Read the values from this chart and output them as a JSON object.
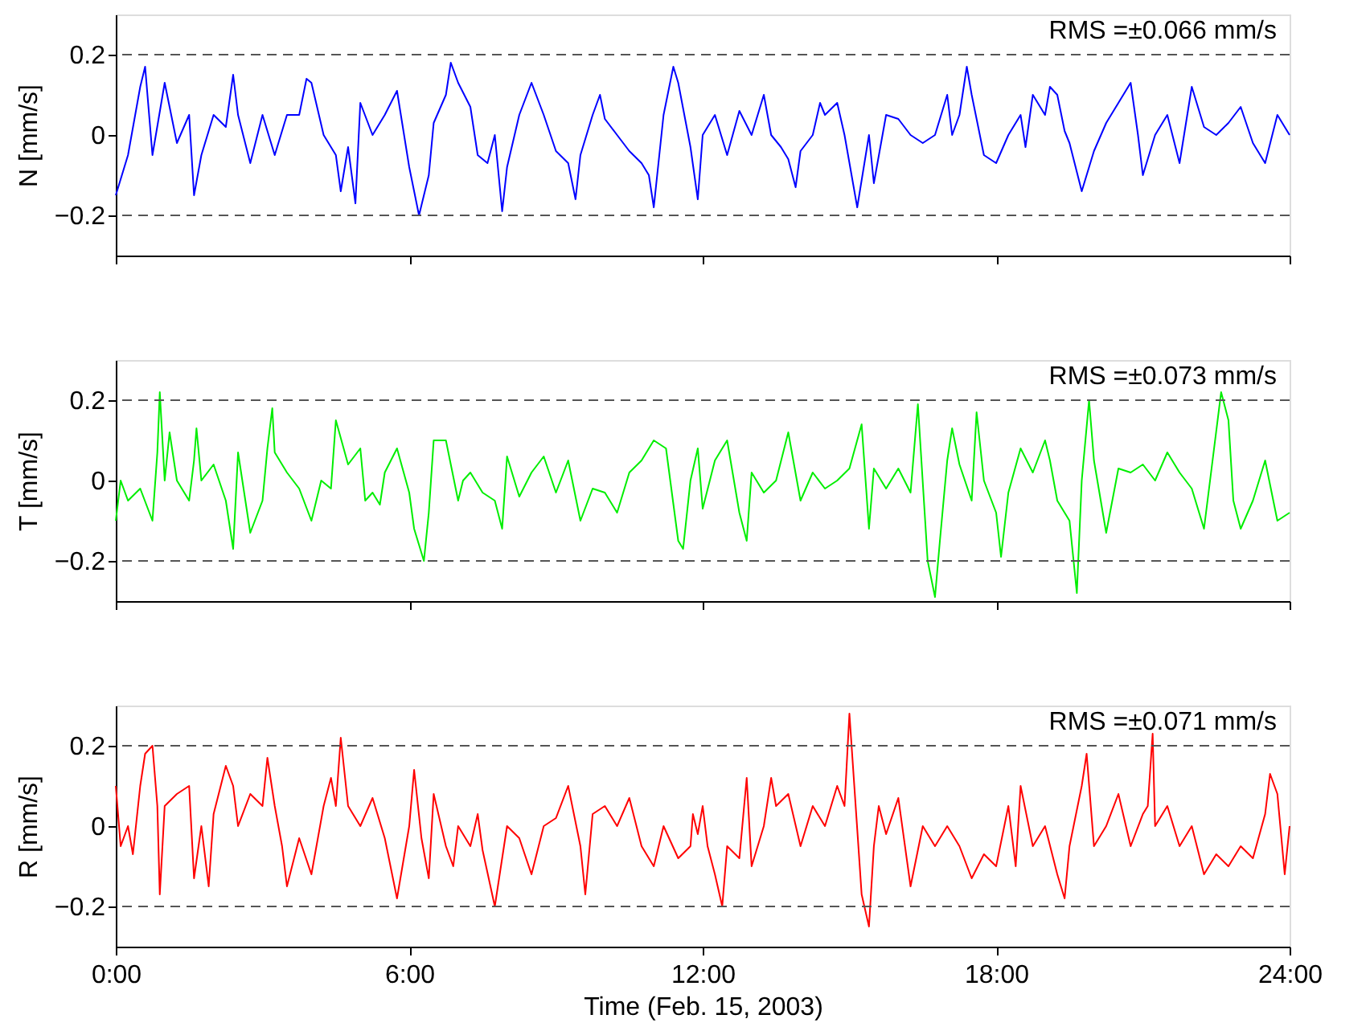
{
  "chart_data": [
    {
      "type": "line",
      "ylabel": "N [mm/s]",
      "annotations": [
        "RMS =±0.066 mm/s"
      ],
      "xlim": [
        0,
        24
      ],
      "xticks": [
        {
          "value": 0,
          "label": null
        },
        {
          "value": 6,
          "label": null
        },
        {
          "value": 12,
          "label": null
        },
        {
          "value": 18,
          "label": null
        },
        {
          "value": 24,
          "label": null
        }
      ],
      "ylim": [
        -0.3,
        0.3
      ],
      "yticks": [
        -0.2,
        0,
        0.2
      ],
      "tick_labels": "y",
      "grid": false,
      "ref_lines": [
        {
          "axis": "y",
          "value": 0.2,
          "color": "#555555",
          "line_style": "dashed"
        },
        {
          "axis": "y",
          "value": -0.2,
          "color": "#555555",
          "line_style": "dashed"
        }
      ],
      "x": [
        0,
        0.25,
        0.5,
        0.6,
        0.75,
        1,
        1.25,
        1.5,
        1.6,
        1.75,
        2,
        2.25,
        2.4,
        2.5,
        2.75,
        3,
        3.25,
        3.5,
        3.75,
        3.9,
        4,
        4.25,
        4.5,
        4.6,
        4.75,
        4.9,
        5,
        5.25,
        5.5,
        5.75,
        6,
        6.1,
        6.2,
        6.4,
        6.5,
        6.75,
        6.85,
        7,
        7.25,
        7.4,
        7.6,
        7.75,
        7.9,
        8,
        8.25,
        8.5,
        8.75,
        9,
        9.25,
        9.4,
        9.5,
        9.75,
        9.9,
        10,
        10.25,
        10.5,
        10.75,
        10.9,
        11,
        11.2,
        11.4,
        11.5,
        11.75,
        11.9,
        12,
        12.25,
        12.5,
        12.75,
        13,
        13.25,
        13.4,
        13.6,
        13.75,
        13.9,
        14,
        14.25,
        14.4,
        14.5,
        14.75,
        14.9,
        15.16,
        15.4,
        15.5,
        15.75,
        16,
        16.25,
        16.5,
        16.75,
        17,
        17.1,
        17.25,
        17.4,
        17.5,
        17.75,
        18,
        18.25,
        18.5,
        18.6,
        18.75,
        19,
        19.1,
        19.25,
        19.4,
        19.5,
        19.75,
        20,
        20.25,
        20.5,
        20.75,
        20.9,
        21,
        21.25,
        21.5,
        21.75,
        22,
        22.1,
        22.25,
        22.5,
        22.75,
        23,
        23.25,
        23.5,
        23.75,
        24
      ],
      "series": [
        {
          "color": "#0000ff",
          "values": [
            -0.15,
            -0.05,
            0.12,
            0.17,
            -0.05,
            0.13,
            -0.02,
            0.05,
            -0.15,
            -0.05,
            0.05,
            0.02,
            0.15,
            0.05,
            -0.07,
            0.05,
            -0.05,
            0.05,
            0.05,
            0.14,
            0.13,
            0,
            -0.05,
            -0.14,
            -0.03,
            -0.17,
            0.08,
            0,
            0.05,
            0.11,
            -0.08,
            -0.14,
            -0.2,
            -0.1,
            0.03,
            0.1,
            0.18,
            0.13,
            0.07,
            -0.05,
            -0.07,
            0,
            -0.19,
            -0.08,
            0.05,
            0.13,
            0.05,
            -0.04,
            -0.07,
            -0.16,
            -0.05,
            0.05,
            0.1,
            0.04,
            0,
            -0.04,
            -0.07,
            -0.1,
            -0.18,
            0.05,
            0.17,
            0.13,
            -0.03,
            -0.16,
            0,
            0.05,
            -0.05,
            0.06,
            0,
            0.1,
            0,
            -0.03,
            -0.06,
            -0.13,
            -0.04,
            0,
            0.08,
            0.05,
            0.08,
            0,
            -0.18,
            0,
            -0.12,
            0.05,
            0.04,
            0,
            -0.02,
            0,
            0.1,
            0,
            0.05,
            0.17,
            0.1,
            -0.05,
            -0.07,
            0,
            0.05,
            -0.03,
            0.1,
            0.05,
            0.12,
            0.1,
            0.01,
            -0.02,
            -0.14,
            -0.04,
            0.03,
            0.08,
            0.13,
            0,
            -0.1,
            0,
            0.05,
            -0.07,
            0.12,
            0.08,
            0.02,
            0,
            0.03,
            0.07,
            -0.02,
            -0.07,
            0.05,
            0
          ]
        }
      ]
    },
    {
      "type": "line",
      "ylabel": "T [mm/s]",
      "annotations": [
        "RMS =±0.073 mm/s"
      ],
      "xlim": [
        0,
        24
      ],
      "xticks": [
        {
          "value": 0,
          "label": null
        },
        {
          "value": 6,
          "label": null
        },
        {
          "value": 12,
          "label": null
        },
        {
          "value": 18,
          "label": null
        },
        {
          "value": 24,
          "label": null
        }
      ],
      "ylim": [
        -0.3,
        0.3
      ],
      "yticks": [
        -0.2,
        0,
        0.2
      ],
      "tick_labels": "y",
      "grid": false,
      "ref_lines": [
        {
          "axis": "y",
          "value": 0.2,
          "color": "#555555",
          "line_style": "dashed"
        },
        {
          "axis": "y",
          "value": -0.2,
          "color": "#555555",
          "line_style": "dashed"
        }
      ],
      "x": [
        0,
        0.1,
        0.25,
        0.5,
        0.75,
        0.85,
        0.9,
        1,
        1.1,
        1.25,
        1.5,
        1.6,
        1.65,
        1.75,
        2,
        2.25,
        2.4,
        2.5,
        2.75,
        3,
        3.1,
        3.2,
        3.25,
        3.5,
        3.75,
        4,
        4.2,
        4.4,
        4.5,
        4.75,
        5,
        5.1,
        5.25,
        5.4,
        5.5,
        5.75,
        6,
        6.1,
        6.3,
        6.4,
        6.5,
        6.75,
        7,
        7.1,
        7.25,
        7.5,
        7.75,
        7.9,
        8,
        8.25,
        8.5,
        8.75,
        9,
        9.25,
        9.5,
        9.75,
        10,
        10.25,
        10.5,
        10.75,
        11,
        11.25,
        11.5,
        11.6,
        11.75,
        11.9,
        12,
        12.25,
        12.5,
        12.75,
        12.9,
        13,
        13.25,
        13.5,
        13.75,
        14,
        14.25,
        14.5,
        14.75,
        15,
        15.25,
        15.4,
        15.5,
        15.75,
        16,
        16.25,
        16.4,
        16.6,
        16.75,
        16.85,
        17,
        17.1,
        17.25,
        17.5,
        17.6,
        17.75,
        18,
        18.1,
        18.25,
        18.5,
        18.75,
        19,
        19.1,
        19.25,
        19.5,
        19.65,
        19.75,
        19.9,
        20,
        20.25,
        20.5,
        20.75,
        21,
        21.25,
        21.5,
        21.75,
        22,
        22.25,
        22.6,
        22.75,
        22.85,
        23,
        23.25,
        23.5,
        23.75,
        24
      ],
      "series": [
        {
          "color": "#00ee00",
          "values": [
            -0.1,
            0,
            -0.05,
            -0.02,
            -0.1,
            0.07,
            0.22,
            0,
            0.12,
            0,
            -0.05,
            0.05,
            0.13,
            0,
            0.04,
            -0.05,
            -0.17,
            0.07,
            -0.13,
            -0.05,
            0.08,
            0.18,
            0.07,
            0.02,
            -0.02,
            -0.1,
            0,
            -0.02,
            0.15,
            0.04,
            0.08,
            -0.05,
            -0.03,
            -0.06,
            0.02,
            0.08,
            -0.03,
            -0.12,
            -0.2,
            -0.08,
            0.1,
            0.1,
            -0.05,
            0,
            0.02,
            -0.03,
            -0.05,
            -0.12,
            0.06,
            -0.04,
            0.02,
            0.06,
            -0.03,
            0.05,
            -0.1,
            -0.02,
            -0.03,
            -0.08,
            0.02,
            0.05,
            0.1,
            0.08,
            -0.15,
            -0.17,
            0,
            0.08,
            -0.07,
            0.05,
            0.1,
            -0.08,
            -0.15,
            0.02,
            -0.03,
            0,
            0.12,
            -0.05,
            0.02,
            -0.02,
            0,
            0.03,
            0.14,
            -0.12,
            0.03,
            -0.02,
            0.03,
            -0.03,
            0.19,
            -0.2,
            -0.29,
            -0.15,
            0.05,
            0.13,
            0.04,
            -0.05,
            0.17,
            0,
            -0.08,
            -0.19,
            -0.03,
            0.08,
            0.02,
            0.1,
            0.05,
            -0.05,
            -0.1,
            -0.28,
            0,
            0.2,
            0.05,
            -0.13,
            0.03,
            0.02,
            0.04,
            0,
            0.07,
            0.02,
            -0.02,
            -0.12,
            0.22,
            0.15,
            -0.05,
            -0.12,
            -0.05,
            0.05,
            -0.1,
            -0.08
          ]
        }
      ]
    },
    {
      "type": "line",
      "ylabel": "R [mm/s]",
      "xlabel": "Time (Feb. 15, 2003)",
      "annotations": [
        "RMS =±0.071 mm/s"
      ],
      "xlim": [
        0,
        24
      ],
      "xticks": [
        {
          "value": 0,
          "label": "0:00"
        },
        {
          "value": 6,
          "label": "6:00"
        },
        {
          "value": 12,
          "label": "12:00"
        },
        {
          "value": 18,
          "label": "18:00"
        },
        {
          "value": 24,
          "label": "24:00"
        }
      ],
      "ylim": [
        -0.3,
        0.3
      ],
      "yticks": [
        -0.2,
        0,
        0.2
      ],
      "grid": false,
      "ref_lines": [
        {
          "axis": "y",
          "value": 0.2,
          "color": "#555555",
          "line_style": "dashed"
        },
        {
          "axis": "y",
          "value": -0.2,
          "color": "#555555",
          "line_style": "dashed"
        }
      ],
      "x": [
        0,
        0.1,
        0.25,
        0.35,
        0.5,
        0.6,
        0.75,
        0.85,
        0.9,
        1,
        1.25,
        1.5,
        1.6,
        1.75,
        1.9,
        2,
        2.25,
        2.4,
        2.5,
        2.75,
        3,
        3.1,
        3.25,
        3.4,
        3.5,
        3.75,
        4,
        4.25,
        4.4,
        4.5,
        4.6,
        4.75,
        5,
        5.25,
        5.5,
        5.75,
        6,
        6.1,
        6.25,
        6.4,
        6.5,
        6.75,
        6.9,
        7,
        7.25,
        7.4,
        7.5,
        7.75,
        8,
        8.25,
        8.5,
        8.75,
        9,
        9.25,
        9.5,
        9.6,
        9.75,
        10,
        10.25,
        10.5,
        10.75,
        11,
        11.2,
        11.5,
        11.75,
        11.8,
        11.9,
        12,
        12.1,
        12.25,
        12.4,
        12.5,
        12.75,
        12.9,
        13,
        13.25,
        13.4,
        13.5,
        13.75,
        14,
        14.25,
        14.5,
        14.75,
        14.9,
        15,
        15.1,
        15.25,
        15.4,
        15.5,
        15.6,
        15.75,
        16,
        16.25,
        16.5,
        16.75,
        17,
        17.25,
        17.5,
        17.75,
        18,
        18.25,
        18.4,
        18.5,
        18.75,
        19,
        19.25,
        19.4,
        19.5,
        19.75,
        19.85,
        20,
        20.25,
        20.5,
        20.75,
        21,
        21.1,
        21.2,
        21.25,
        21.5,
        21.75,
        22,
        22.25,
        22.5,
        22.75,
        23,
        23.25,
        23.5,
        23.6,
        23.75,
        23.9,
        24
      ],
      "series": [
        {
          "color": "#ff0000",
          "values": [
            0.1,
            -0.05,
            0,
            -0.07,
            0.1,
            0.18,
            0.2,
            0.05,
            -0.17,
            0.05,
            0.08,
            0.1,
            -0.13,
            0,
            -0.15,
            0.03,
            0.15,
            0.1,
            0,
            0.08,
            0.05,
            0.17,
            0.05,
            -0.05,
            -0.15,
            -0.03,
            -0.12,
            0.05,
            0.12,
            0.05,
            0.22,
            0.05,
            0,
            0.07,
            -0.03,
            -0.18,
            0,
            0.14,
            -0.03,
            -0.13,
            0.08,
            -0.05,
            -0.1,
            0,
            -0.05,
            0.03,
            -0.06,
            -0.2,
            0,
            -0.03,
            -0.12,
            0,
            0.02,
            0.1,
            -0.05,
            -0.17,
            0.03,
            0.05,
            0,
            0.07,
            -0.05,
            -0.1,
            0,
            -0.08,
            -0.05,
            0.03,
            -0.02,
            0.05,
            -0.05,
            -0.12,
            -0.2,
            -0.05,
            -0.08,
            0.12,
            -0.1,
            0,
            0.12,
            0.05,
            0.08,
            -0.05,
            0.05,
            0,
            0.1,
            0.05,
            0.28,
            0.1,
            -0.17,
            -0.25,
            -0.05,
            0.05,
            -0.02,
            0.07,
            -0.15,
            0,
            -0.05,
            0,
            -0.05,
            -0.13,
            -0.07,
            -0.1,
            0.05,
            -0.1,
            0.1,
            -0.05,
            0,
            -0.12,
            -0.18,
            -0.05,
            0.1,
            0.18,
            -0.05,
            0,
            0.08,
            -0.05,
            0.03,
            0.05,
            0.23,
            0,
            0.05,
            -0.05,
            0,
            -0.12,
            -0.07,
            -0.1,
            -0.05,
            -0.08,
            0.03,
            0.13,
            0.08,
            -0.12,
            0
          ]
        }
      ]
    }
  ]
}
